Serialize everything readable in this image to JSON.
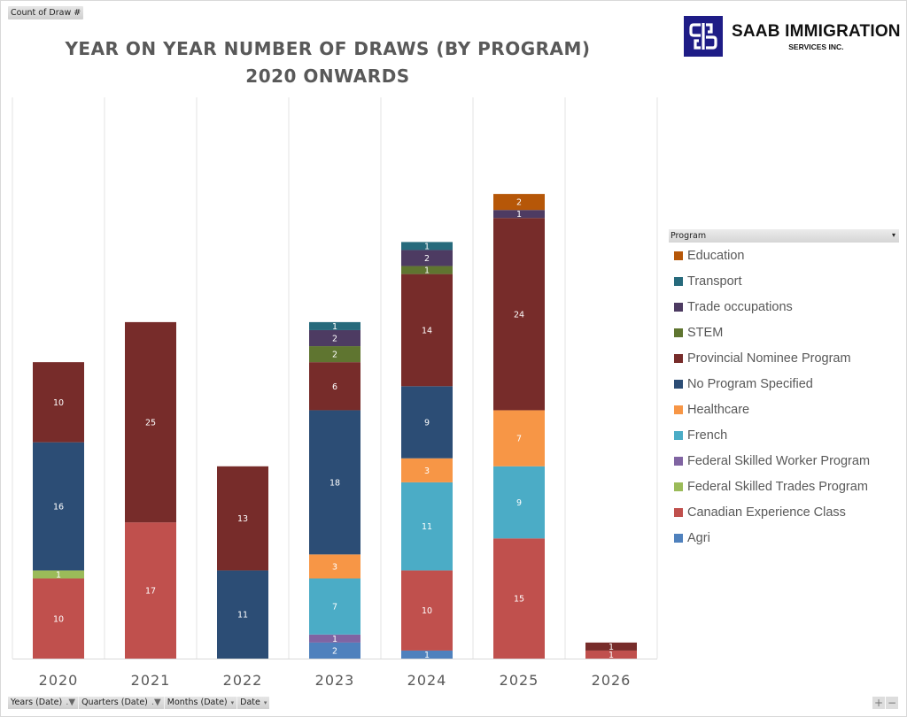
{
  "field_buttons": {
    "values_field": "Count of Draw #",
    "axis_fields": [
      {
        "label": "Years (Date)",
        "icon": "filter-icon"
      },
      {
        "label": "Quarters (Date)",
        "icon": "filter-icon"
      },
      {
        "label": "Months (Date)",
        "icon": "dropdown-icon"
      },
      {
        "label": "Date",
        "icon": "dropdown-icon"
      }
    ],
    "legend_field": "Program"
  },
  "logo": {
    "name": "SAAB IMMIGRATION",
    "subtitle": "SERVICES INC.",
    "color": "#1e1c86"
  },
  "zoom_controls": {
    "plus": "+",
    "minus": "−"
  },
  "chart_data": {
    "type": "bar",
    "stacked": true,
    "title": "YEAR ON YEAR NUMBER OF DRAWS (BY PROGRAM)",
    "subtitle": "2020 ONWARDS",
    "xlabel": "",
    "ylabel": "",
    "ylim": [
      0,
      70
    ],
    "grid": "vertical",
    "legend_position": "right",
    "categories": [
      "2020",
      "2021",
      "2022",
      "2023",
      "2024",
      "2025",
      "2026"
    ],
    "series": [
      {
        "name": "Agri",
        "color": "#4f81bd",
        "values": [
          0,
          0,
          0,
          2,
          1,
          0,
          0
        ]
      },
      {
        "name": "Canadian Experience Class",
        "color": "#c0504d",
        "values": [
          10,
          17,
          0,
          0,
          10,
          15,
          1
        ]
      },
      {
        "name": "Federal Skilled Trades Program",
        "color": "#9bbb59",
        "values": [
          1,
          0,
          0,
          0,
          0,
          0,
          0
        ]
      },
      {
        "name": "Federal Skilled Worker Program",
        "color": "#8064a2",
        "values": [
          0,
          0,
          0,
          1,
          0,
          0,
          0
        ]
      },
      {
        "name": "French",
        "color": "#4bacc6",
        "values": [
          0,
          0,
          0,
          7,
          11,
          9,
          0
        ]
      },
      {
        "name": "Healthcare",
        "color": "#f79646",
        "values": [
          0,
          0,
          0,
          3,
          3,
          7,
          0
        ]
      },
      {
        "name": "No Program Specified",
        "color": "#2c4d75",
        "values": [
          16,
          0,
          11,
          18,
          9,
          0,
          0
        ]
      },
      {
        "name": "Provincial Nominee Program",
        "color": "#772c2a",
        "values": [
          10,
          25,
          13,
          6,
          14,
          24,
          1
        ]
      },
      {
        "name": "STEM",
        "color": "#5f7530",
        "values": [
          0,
          0,
          0,
          2,
          1,
          0,
          0
        ]
      },
      {
        "name": "Trade occupations",
        "color": "#4d3b62",
        "values": [
          0,
          0,
          0,
          2,
          2,
          1,
          0
        ]
      },
      {
        "name": "Transport",
        "color": "#276a7c",
        "values": [
          0,
          0,
          0,
          1,
          1,
          0,
          0
        ]
      },
      {
        "name": "Education",
        "color": "#b65708",
        "values": [
          0,
          0,
          0,
          0,
          0,
          2,
          0
        ]
      }
    ],
    "legend_order": [
      "Education",
      "Transport",
      "Trade occupations",
      "STEM",
      "Provincial Nominee Program",
      "No Program Specified",
      "Healthcare",
      "French",
      "Federal Skilled Worker Program",
      "Federal Skilled Trades Program",
      "Canadian Experience Class",
      "Agri"
    ]
  }
}
